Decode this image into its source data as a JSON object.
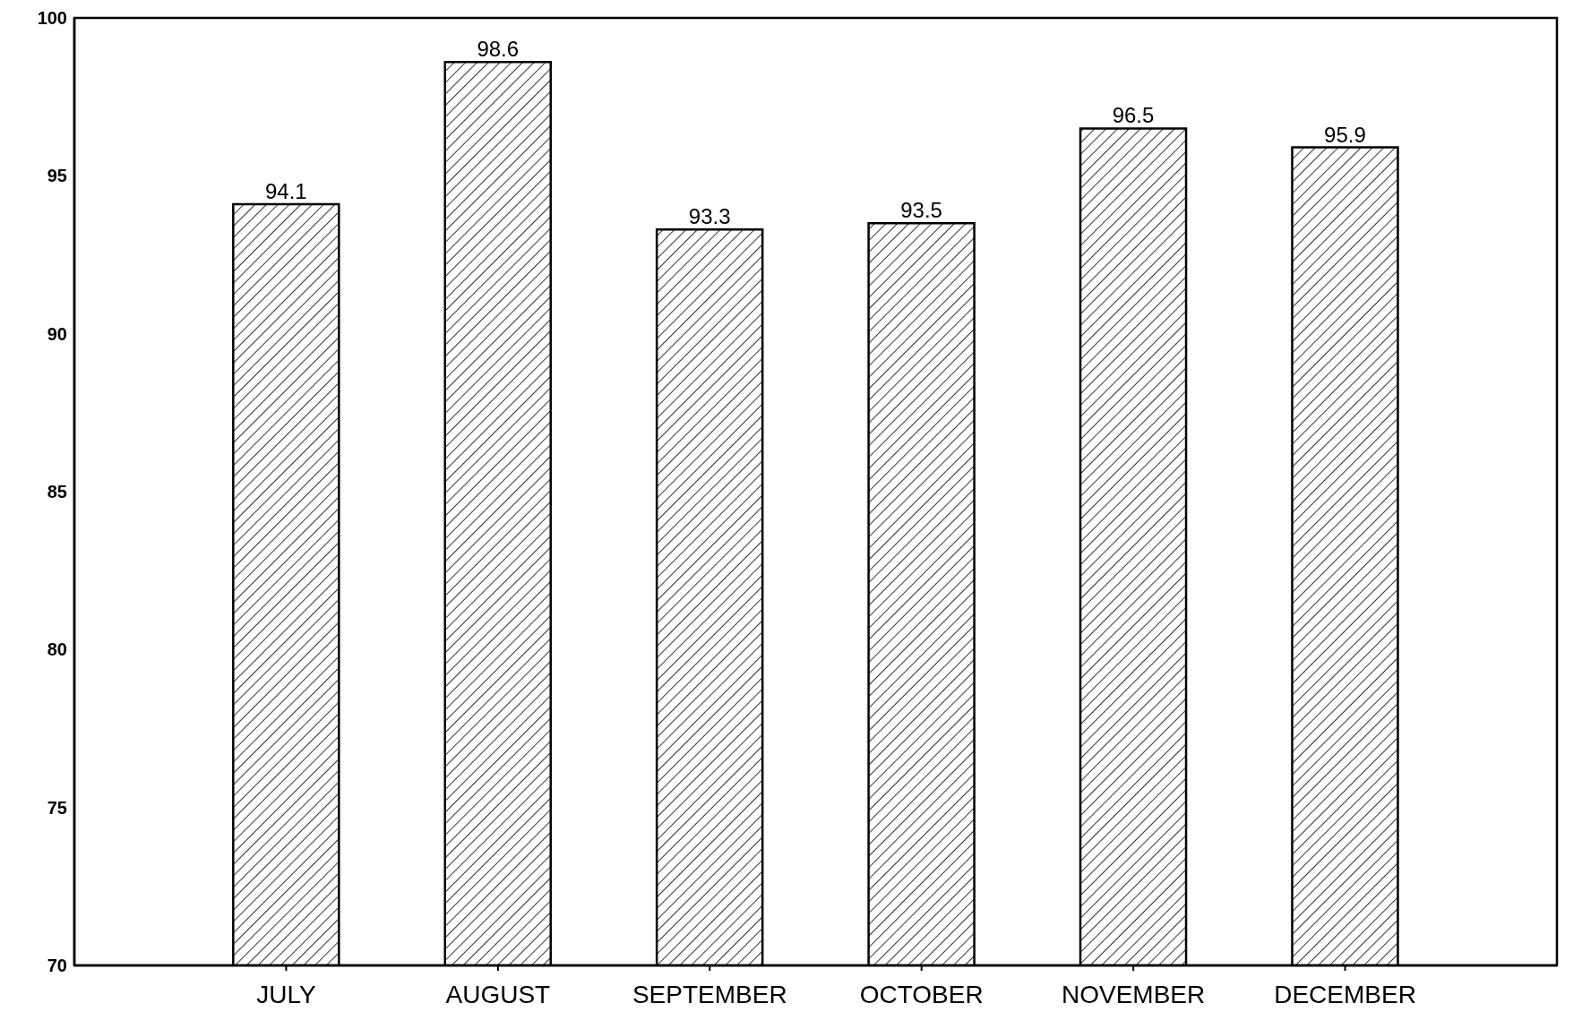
{
  "chart_data": {
    "type": "bar",
    "categories": [
      "JULY",
      "AUGUST",
      "SEPTEMBER",
      "OCTOBER",
      "NOVEMBER",
      "DECEMBER"
    ],
    "values": [
      94.1,
      98.6,
      93.3,
      93.5,
      96.5,
      95.9
    ],
    "color": "#000000",
    "ylim": [
      70,
      100
    ],
    "yticks": [
      70,
      75,
      80,
      85,
      90,
      95,
      100
    ],
    "data_labels": true,
    "grid": false,
    "legend": false
  }
}
